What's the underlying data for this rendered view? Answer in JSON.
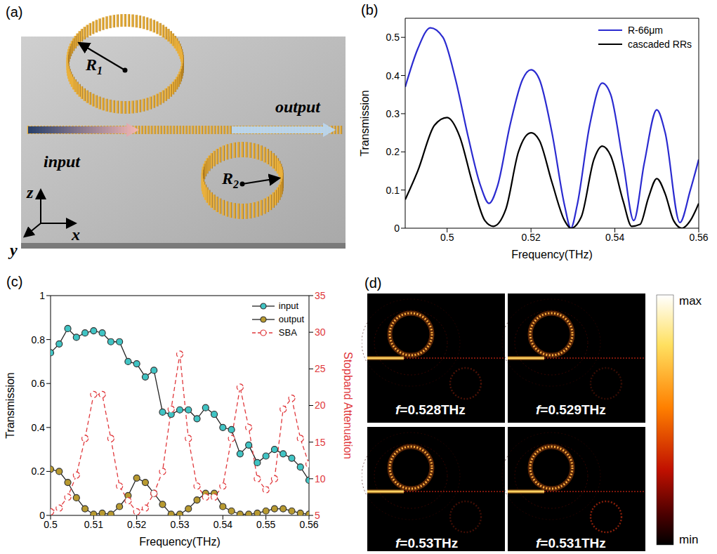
{
  "chart_data": [
    {
      "type": "line",
      "label": "(b)",
      "xlabel": "Frequency(THz)",
      "ylabel": "Transmission",
      "xlim": [
        0.49,
        0.56
      ],
      "xticks": [
        0.5,
        0.52,
        0.54,
        0.56
      ],
      "ylim": [
        0,
        0.55
      ],
      "yticks": [
        0,
        0.1,
        0.2,
        0.3,
        0.4,
        0.5
      ],
      "legend": "upper right",
      "grid": false,
      "series": [
        {
          "name": "R-66μm",
          "color": "#2b2bd0",
          "line_style": "solid",
          "x": [
            0.49,
            0.493,
            0.496,
            0.499,
            0.502,
            0.505,
            0.508,
            0.51,
            0.512,
            0.515,
            0.518,
            0.52,
            0.522,
            0.525,
            0.528,
            0.5295,
            0.531,
            0.534,
            0.537,
            0.539,
            0.542,
            0.5445,
            0.547,
            0.55,
            0.552,
            0.5555,
            0.558,
            0.56
          ],
          "values": [
            0.37,
            0.47,
            0.525,
            0.5,
            0.39,
            0.24,
            0.11,
            0.065,
            0.11,
            0.27,
            0.39,
            0.415,
            0.39,
            0.25,
            0.06,
            0,
            0.06,
            0.27,
            0.38,
            0.35,
            0.17,
            0.02,
            0.17,
            0.31,
            0.25,
            0.015,
            0.1,
            0.18
          ]
        },
        {
          "name": "cascaded RRs",
          "color": "#000000",
          "line_style": "solid",
          "x": [
            0.49,
            0.493,
            0.497,
            0.5,
            0.503,
            0.506,
            0.509,
            0.511,
            0.514,
            0.517,
            0.52,
            0.522,
            0.525,
            0.528,
            0.5295,
            0.532,
            0.535,
            0.537,
            0.539,
            0.542,
            0.544,
            0.546,
            0.548,
            0.55,
            0.552,
            0.554,
            0.556,
            0.558,
            0.56
          ],
          "values": [
            0.075,
            0.15,
            0.27,
            0.29,
            0.24,
            0.12,
            0.02,
            0.005,
            0.05,
            0.2,
            0.25,
            0.23,
            0.12,
            0.02,
            0,
            0.03,
            0.18,
            0.215,
            0.19,
            0.07,
            0.005,
            0.01,
            0.08,
            0.13,
            0.09,
            0.02,
            0,
            0.02,
            0.065
          ]
        }
      ]
    },
    {
      "type": "line",
      "label": "(c)",
      "xlabel": "Frequency(THz)",
      "ylabel": "Transmission",
      "y2label": "Stopband Attenuation",
      "xlim": [
        0.5,
        0.56
      ],
      "xticks": [
        0.5,
        0.51,
        0.52,
        0.53,
        0.54,
        0.55,
        0.56
      ],
      "ylim": [
        0,
        1
      ],
      "yticks": [
        0,
        0.2,
        0.4,
        0.6,
        0.8,
        1
      ],
      "y2lim": [
        5,
        35
      ],
      "y2ticks": [
        5,
        10,
        15,
        20,
        25,
        30,
        35
      ],
      "legend": "upper right",
      "grid": false,
      "x": [
        0.5,
        0.502,
        0.504,
        0.506,
        0.508,
        0.51,
        0.512,
        0.514,
        0.516,
        0.518,
        0.52,
        0.522,
        0.524,
        0.526,
        0.528,
        0.53,
        0.532,
        0.534,
        0.536,
        0.538,
        0.54,
        0.542,
        0.544,
        0.546,
        0.548,
        0.55,
        0.552,
        0.554,
        0.556,
        0.558,
        0.56
      ],
      "series": [
        {
          "name": "input",
          "color": "#40c4c4",
          "marker": "filled_circle",
          "line_style": "solid",
          "values": [
            0.74,
            0.78,
            0.85,
            0.81,
            0.83,
            0.84,
            0.83,
            0.79,
            0.79,
            0.7,
            0.69,
            0.63,
            0.66,
            0.47,
            0.46,
            0.48,
            0.48,
            0.44,
            0.49,
            0.46,
            0.4,
            0.39,
            0.28,
            0.32,
            0.24,
            0.27,
            0.3,
            0.28,
            0.26,
            0.22,
            0.16
          ]
        },
        {
          "name": "output",
          "color": "#b89a30",
          "marker": "filled_circle",
          "line_style": "solid",
          "values": [
            0.21,
            0.2,
            0.15,
            0.08,
            0.03,
            0.005,
            0.01,
            0.005,
            0.04,
            0.09,
            0.17,
            0.15,
            0.1,
            0.05,
            0.005,
            0.005,
            0.03,
            0.07,
            0.1,
            0.1,
            0.04,
            0.02,
            0.005,
            0.005,
            0.01,
            0.02,
            0.03,
            0.03,
            0.02,
            0.01,
            0.005
          ]
        },
        {
          "name": "SBA",
          "color": "#e0383c",
          "marker": "open_circle",
          "line_style": "dashed",
          "axis": "y2",
          "values": [
            5.5,
            6,
            7.5,
            10.5,
            15.5,
            21.5,
            21.5,
            15.5,
            9,
            7,
            5.5,
            6,
            8,
            11,
            19.5,
            27,
            15.5,
            9,
            7.5,
            7.5,
            9,
            15.5,
            22.5,
            17,
            10,
            8.5,
            10,
            19.5,
            21,
            15.5,
            12
          ]
        }
      ]
    }
  ],
  "diagram_a": {
    "label": "(a)",
    "radii": [
      "R1",
      "R2"
    ],
    "input": "input",
    "output": "output",
    "axes": {
      "x": "x",
      "y": "y",
      "z": "z"
    }
  },
  "field_maps_d": {
    "label": "(d)",
    "frames": [
      "f=0.528THz",
      "f=0.529THz",
      "f=0.53THz",
      "f=0.531THz"
    ],
    "colorbar": {
      "max": "max",
      "min": "min"
    }
  }
}
